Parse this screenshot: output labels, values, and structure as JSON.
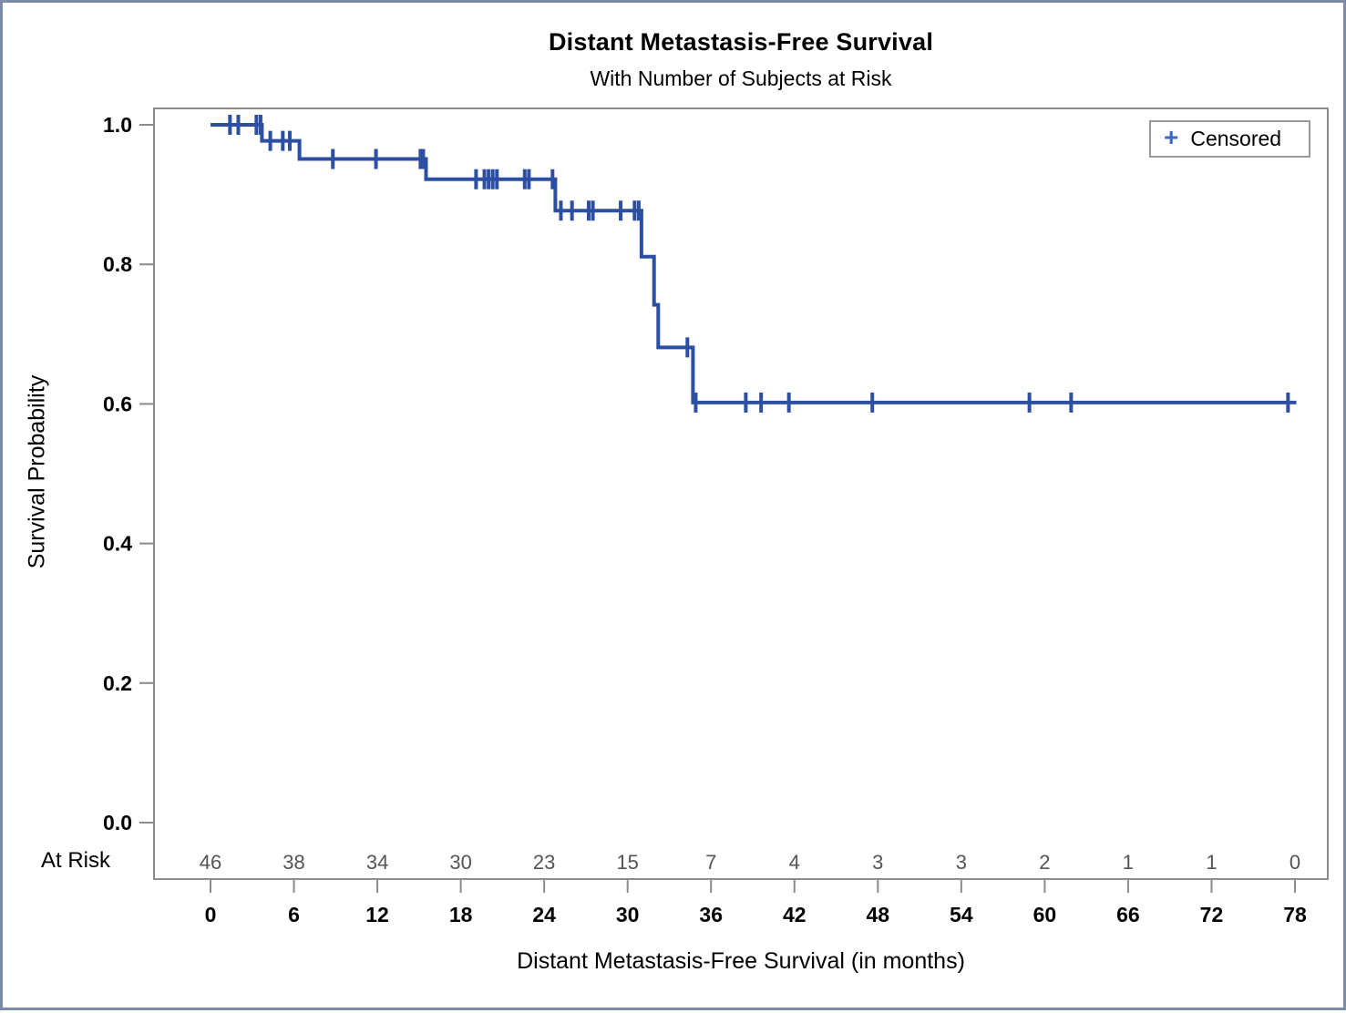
{
  "figure": {
    "title": "Distant Metastasis-Free Survival",
    "subtitle": "With Number of Subjects at Risk"
  },
  "chart_data": {
    "type": "line",
    "subtype": "kaplan-meier-step",
    "title": "Distant Metastasis-Free Survival",
    "subtitle": "With Number of Subjects at Risk",
    "xlabel": "Distant Metastasis-Free Survival (in months)",
    "ylabel": "Survival Probability",
    "xlim": [
      0,
      78
    ],
    "ylim": [
      0.0,
      1.0
    ],
    "xticks": [
      0,
      6,
      12,
      18,
      24,
      30,
      36,
      42,
      48,
      54,
      60,
      66,
      72,
      78
    ],
    "yticks": [
      0.0,
      0.2,
      0.4,
      0.6,
      0.8,
      1.0
    ],
    "grid": false,
    "legend_position": "top-right",
    "legend_entries": [
      {
        "label": "Censored",
        "marker": "plus",
        "marker_glyph": "+",
        "marker_color": "#3a67c8"
      }
    ],
    "series": [
      {
        "name": "Distant metastasis-free survival",
        "color": "#2d4fa2",
        "steps": [
          [
            0,
            1.0
          ],
          [
            3.7,
            1.0
          ],
          [
            3.7,
            0.977
          ],
          [
            6.4,
            0.977
          ],
          [
            6.4,
            0.951
          ],
          [
            15.5,
            0.951
          ],
          [
            15.5,
            0.922
          ],
          [
            24.8,
            0.922
          ],
          [
            24.8,
            0.877
          ],
          [
            31.0,
            0.877
          ],
          [
            31.0,
            0.811
          ],
          [
            31.9,
            0.811
          ],
          [
            31.9,
            0.742
          ],
          [
            32.2,
            0.742
          ],
          [
            32.2,
            0.681
          ],
          [
            34.7,
            0.681
          ],
          [
            34.7,
            0.602
          ],
          [
            78.1,
            0.602
          ]
        ]
      }
    ],
    "censored_points": [
      [
        1.4,
        1.0
      ],
      [
        2.0,
        1.0
      ],
      [
        3.3,
        1.0
      ],
      [
        3.6,
        1.0
      ],
      [
        4.3,
        0.977
      ],
      [
        5.2,
        0.977
      ],
      [
        5.7,
        0.977
      ],
      [
        8.8,
        0.951
      ],
      [
        11.9,
        0.951
      ],
      [
        15.1,
        0.951
      ],
      [
        15.3,
        0.951
      ],
      [
        19.1,
        0.922
      ],
      [
        19.7,
        0.922
      ],
      [
        20.0,
        0.922
      ],
      [
        20.3,
        0.922
      ],
      [
        20.6,
        0.922
      ],
      [
        22.6,
        0.922
      ],
      [
        22.9,
        0.922
      ],
      [
        24.6,
        0.922
      ],
      [
        25.2,
        0.877
      ],
      [
        26.0,
        0.877
      ],
      [
        27.2,
        0.877
      ],
      [
        27.5,
        0.877
      ],
      [
        29.5,
        0.877
      ],
      [
        30.5,
        0.877
      ],
      [
        30.8,
        0.877
      ],
      [
        34.3,
        0.681
      ],
      [
        34.9,
        0.602
      ],
      [
        38.5,
        0.602
      ],
      [
        39.6,
        0.602
      ],
      [
        41.6,
        0.602
      ],
      [
        47.6,
        0.602
      ],
      [
        58.9,
        0.602
      ],
      [
        61.9,
        0.602
      ],
      [
        77.5,
        0.602
      ]
    ],
    "at_risk": {
      "label": "At Risk",
      "times": [
        0,
        6,
        12,
        18,
        24,
        30,
        36,
        42,
        48,
        54,
        60,
        66,
        72,
        78
      ],
      "counts": [
        46,
        38,
        34,
        30,
        23,
        15,
        7,
        4,
        3,
        3,
        2,
        1,
        1,
        0
      ]
    },
    "colors": {
      "line": "#2d4fa2",
      "legend_marker": "#3a67c8",
      "frame": "#8c8c8c",
      "tick": "#8c8c8c",
      "at_risk_numbers": "#545454",
      "outer_border": "#7d8ca6"
    }
  }
}
